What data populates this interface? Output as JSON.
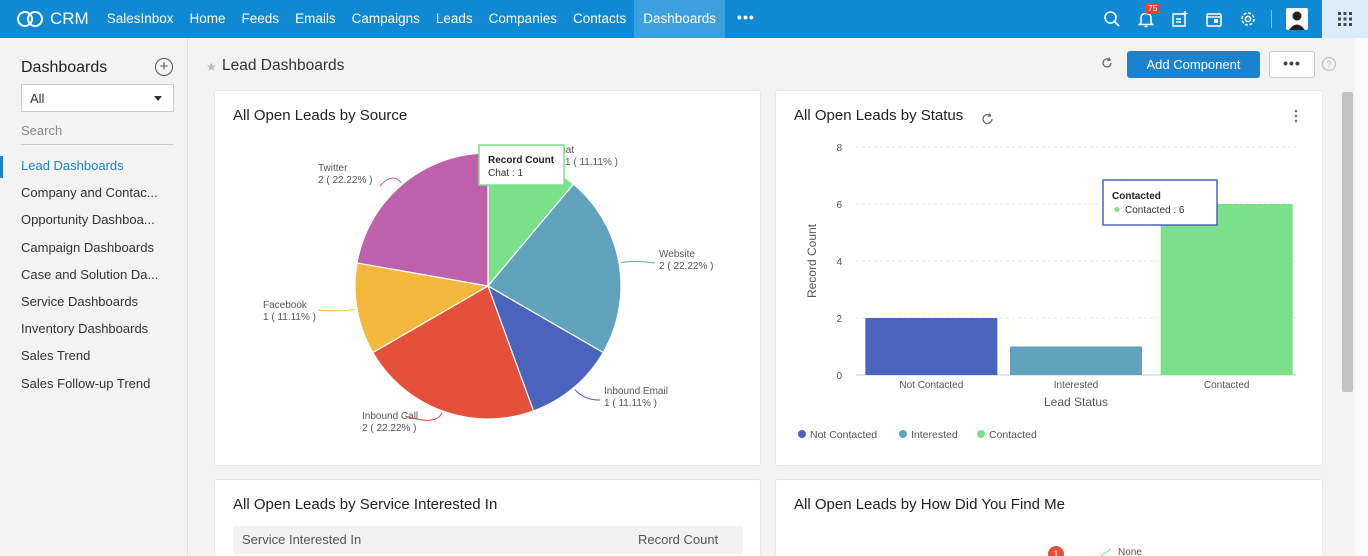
{
  "nav": {
    "logo": "CRM",
    "items": [
      "SalesInbox",
      "Home",
      "Feeds",
      "Emails",
      "Campaigns",
      "Leads",
      "Companies",
      "Contacts",
      "Dashboards"
    ],
    "more": "•••",
    "notification_count": "75",
    "colors": {
      "bar": "#0f89d4",
      "active": "#3aa0de"
    }
  },
  "sidebar": {
    "title": "Dashboards",
    "filter_value": "All",
    "search_placeholder": "Search",
    "items": [
      {
        "label": "Lead Dashboards",
        "active": true
      },
      {
        "label": "Company and Contac...",
        "active": false
      },
      {
        "label": "Opportunity Dashboa...",
        "active": false
      },
      {
        "label": "Campaign Dashboards",
        "active": false
      },
      {
        "label": "Case and Solution Da...",
        "active": false
      },
      {
        "label": "Service Dashboards",
        "active": false
      },
      {
        "label": "Inventory Dashboards",
        "active": false
      },
      {
        "label": "Sales Trend",
        "active": false
      },
      {
        "label": "Sales Follow-up Trend",
        "active": false
      }
    ]
  },
  "header": {
    "title": "Lead Dashboards",
    "add_component": "Add Component",
    "more": "•••",
    "help": "?"
  },
  "cards": {
    "source": {
      "title": "All Open Leads by Source"
    },
    "status": {
      "title": "All Open Leads by Status"
    },
    "service": {
      "title": "All Open Leads by Service Interested In",
      "col1": "Service Interested In",
      "col2": "Record Count"
    },
    "found": {
      "title": "All Open Leads by How Did You Find Me",
      "badge": "1",
      "visible_label": "None"
    }
  },
  "chart_data": [
    {
      "type": "pie",
      "title": "All Open Leads by Source",
      "slices": [
        {
          "label": "Chat",
          "value": 1,
          "text": "1 ( 11.11% )",
          "color": "#7be08a"
        },
        {
          "label": "Website",
          "value": 2,
          "text": "2 ( 22.22% )",
          "color": "#61a3bd"
        },
        {
          "label": "Inbound Email",
          "value": 1,
          "text": "1 ( 11.11% )",
          "color": "#4a64be"
        },
        {
          "label": "Inbound Call",
          "value": 2,
          "text": "2 ( 22.22% )",
          "color": "#e4503a"
        },
        {
          "label": "Facebook",
          "value": 1,
          "text": "1 ( 11.11% )",
          "color": "#f4b83c"
        },
        {
          "label": "Twitter",
          "value": 2,
          "text": "2 ( 22.22% )",
          "color": "#bd61ad"
        }
      ],
      "tooltip": {
        "title": "Record Count",
        "body": "Chat : 1"
      }
    },
    {
      "type": "bar",
      "title": "All Open Leads by Status",
      "categories": [
        "Not Contacted",
        "Interested",
        "Contacted"
      ],
      "values": [
        2,
        1,
        6
      ],
      "colors": [
        "#4a64be",
        "#61a3bd",
        "#7be08a"
      ],
      "xlabel": "Lead Status",
      "ylabel": "Record Count",
      "ylim": [
        0,
        8
      ],
      "yticks": [
        0,
        2,
        4,
        6,
        8
      ],
      "legend": [
        "Not Contacted",
        "Interested",
        "Contacted"
      ],
      "legend_position": "bottom-left",
      "grid": true,
      "tooltip": {
        "title": "Contacted",
        "body": "Contacted : 6"
      }
    }
  ]
}
